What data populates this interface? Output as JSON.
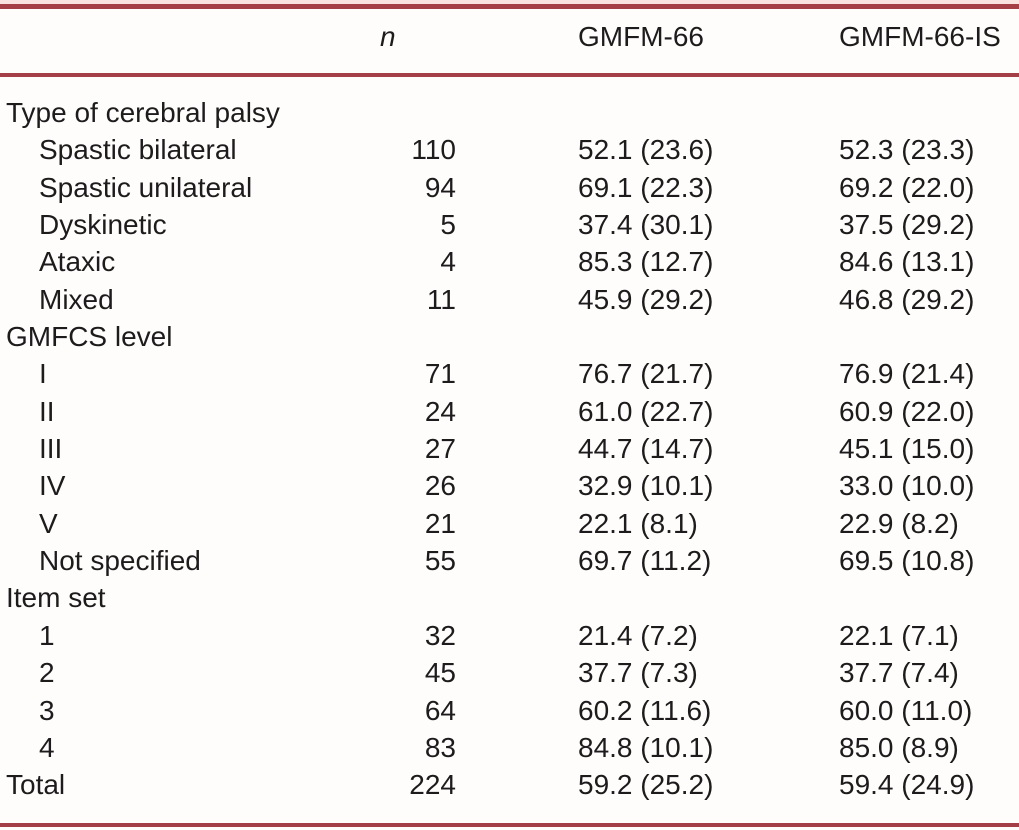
{
  "colors": {
    "rule_red": "#a53f47",
    "top_strip_pink": "#f9e2e0",
    "text": "#1e1b1c",
    "background": "#fffdfc"
  },
  "table": {
    "header": {
      "n_label": "n",
      "gmfm66_label": "GMFM-66",
      "gmfm66is_label": "GMFM-66-IS"
    },
    "rows": [
      {
        "label": "Type of cerebral palsy",
        "kind": "section"
      },
      {
        "label": "Spastic bilateral",
        "n": "110",
        "gmfm66": "52.1 (23.6)",
        "gmfm66is": "52.3 (23.3)"
      },
      {
        "label": "Spastic unilateral",
        "n": "94",
        "gmfm66": "69.1 (22.3)",
        "gmfm66is": "69.2 (22.0)"
      },
      {
        "label": "Dyskinetic",
        "n": "5",
        "gmfm66": "37.4 (30.1)",
        "gmfm66is": "37.5 (29.2)"
      },
      {
        "label": "Ataxic",
        "n": "4",
        "gmfm66": "85.3 (12.7)",
        "gmfm66is": "84.6 (13.1)"
      },
      {
        "label": "Mixed",
        "n": "11",
        "gmfm66": "45.9 (29.2)",
        "gmfm66is": "46.8 (29.2)"
      },
      {
        "label": "GMFCS level",
        "kind": "section"
      },
      {
        "label": "I",
        "n": "71",
        "gmfm66": "76.7 (21.7)",
        "gmfm66is": "76.9 (21.4)"
      },
      {
        "label": "II",
        "n": "24",
        "gmfm66": "61.0 (22.7)",
        "gmfm66is": "60.9 (22.0)"
      },
      {
        "label": "III",
        "n": "27",
        "gmfm66": "44.7 (14.7)",
        "gmfm66is": "45.1 (15.0)"
      },
      {
        "label": "IV",
        "n": "26",
        "gmfm66": "32.9 (10.1)",
        "gmfm66is": "33.0 (10.0)"
      },
      {
        "label": "V",
        "n": "21",
        "gmfm66": "22.1 (8.1)",
        "gmfm66is": "22.9 (8.2)"
      },
      {
        "label": "Not specified",
        "n": "55",
        "gmfm66": "69.7 (11.2)",
        "gmfm66is": "69.5 (10.8)"
      },
      {
        "label": "Item set",
        "kind": "section"
      },
      {
        "label": "1",
        "n": "32",
        "gmfm66": "21.4 (7.2)",
        "gmfm66is": "22.1 (7.1)"
      },
      {
        "label": "2",
        "n": "45",
        "gmfm66": "37.7 (7.3)",
        "gmfm66is": "37.7 (7.4)"
      },
      {
        "label": "3",
        "n": "64",
        "gmfm66": "60.2 (11.6)",
        "gmfm66is": "60.0 (11.0)"
      },
      {
        "label": "4",
        "n": "83",
        "gmfm66": "84.8 (10.1)",
        "gmfm66is": "85.0 (8.9)"
      },
      {
        "label": "Total",
        "n": "224",
        "gmfm66": "59.2 (25.2)",
        "gmfm66is": "59.4 (24.9)"
      }
    ]
  }
}
